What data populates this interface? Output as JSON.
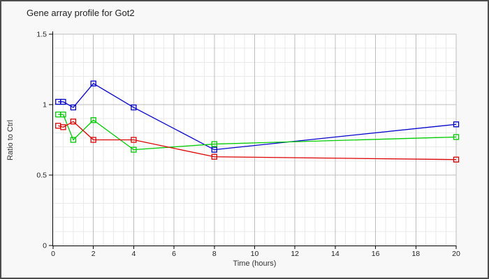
{
  "window": {
    "background": "#f8f8f8",
    "border_color": "#4d4d4d",
    "plot_background": "#ffffff"
  },
  "chart_data": {
    "type": "line",
    "title": "Gene array profile for Got2",
    "xlabel": "Time (hours)",
    "ylabel": "Ratio to Ctrl",
    "xlim": [
      0,
      20
    ],
    "ylim": [
      0,
      1.5
    ],
    "x_major_ticks": [
      0,
      2,
      4,
      6,
      8,
      10,
      12,
      14,
      16,
      18,
      20
    ],
    "x_tick_labels": [
      "0",
      "2",
      "4",
      "6",
      "8",
      "10",
      "12",
      "14",
      "16",
      "18",
      "20"
    ],
    "y_major_ticks": [
      0,
      0.5,
      1,
      1.5
    ],
    "y_tick_labels": [
      "0",
      "0.5",
      "1",
      "1.5"
    ],
    "x_minor_step": 0.5,
    "y_minor_step": 0.1,
    "grid": true,
    "legend_position": "none",
    "marker": "open-square",
    "x": [
      0.25,
      0.5,
      1,
      2,
      4,
      8,
      20
    ],
    "series": [
      {
        "name": "blue-series",
        "color": "#0000cc",
        "values": [
          1.02,
          1.02,
          0.98,
          1.15,
          0.98,
          0.68,
          0.86
        ]
      },
      {
        "name": "green-series",
        "color": "#00cc00",
        "values": [
          0.93,
          0.93,
          0.75,
          0.89,
          0.68,
          0.72,
          0.77
        ]
      },
      {
        "name": "red-series",
        "color": "#dd0000",
        "values": [
          0.85,
          0.84,
          0.88,
          0.75,
          0.75,
          0.63,
          0.61
        ]
      }
    ],
    "style_colors": {
      "major_grid": "#bdbdbd",
      "minor_grid": "#e9e9e9",
      "axis": "#000000",
      "tick_text": "#222222"
    }
  }
}
